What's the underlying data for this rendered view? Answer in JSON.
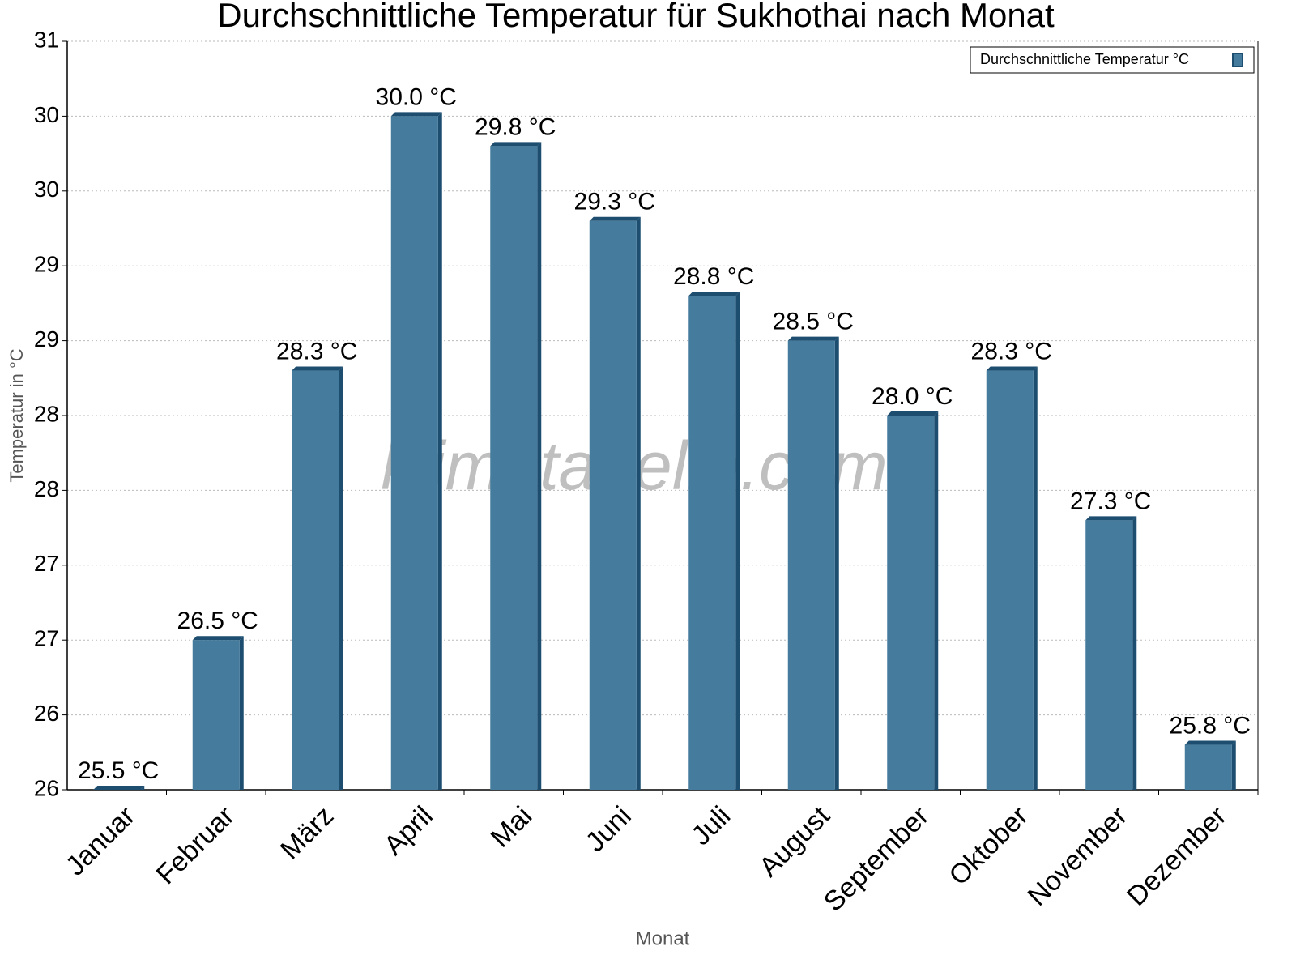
{
  "chart_data": {
    "type": "bar",
    "title": "Durchschnittliche Temperatur für Sukhothai nach Monat",
    "x_label": "Monat",
    "y_label": "Temperatur in °C",
    "watermark": "klimatabelle.com",
    "categories": [
      "Januar",
      "Februar",
      "März",
      "April",
      "Mai",
      "Juni",
      "Juli",
      "August",
      "September",
      "Oktober",
      "November",
      "Dezember"
    ],
    "series": [
      {
        "name": "Durchschnittliche Temperatur °C",
        "color": "#457b9d",
        "values": [
          25.5,
          26.5,
          28.3,
          30.0,
          29.8,
          29.3,
          28.8,
          28.5,
          28.0,
          28.3,
          27.3,
          25.8
        ],
        "value_labels": [
          "25.5 °C",
          "26.5 °C",
          "28.3 °C",
          "30.0 °C",
          "29.8 °C",
          "29.3 °C",
          "28.8 °C",
          "28.5 °C",
          "28.0 °C",
          "28.3 °C",
          "27.3 °C",
          "25.8 °C"
        ]
      }
    ],
    "ylim": [
      25.5,
      30.5
    ],
    "yticks": [
      {
        "value": 25.5,
        "label": "26"
      },
      26,
      {
        "value": 26.5,
        "label": "27"
      },
      27,
      {
        "value": 27.5,
        "label": "28"
      },
      28,
      {
        "value": 28.5,
        "label": "29"
      },
      29,
      {
        "value": 29.5,
        "label": "30"
      },
      30,
      {
        "value": 30.5,
        "label": "31"
      }
    ],
    "grid": true,
    "legend": "top-right"
  }
}
